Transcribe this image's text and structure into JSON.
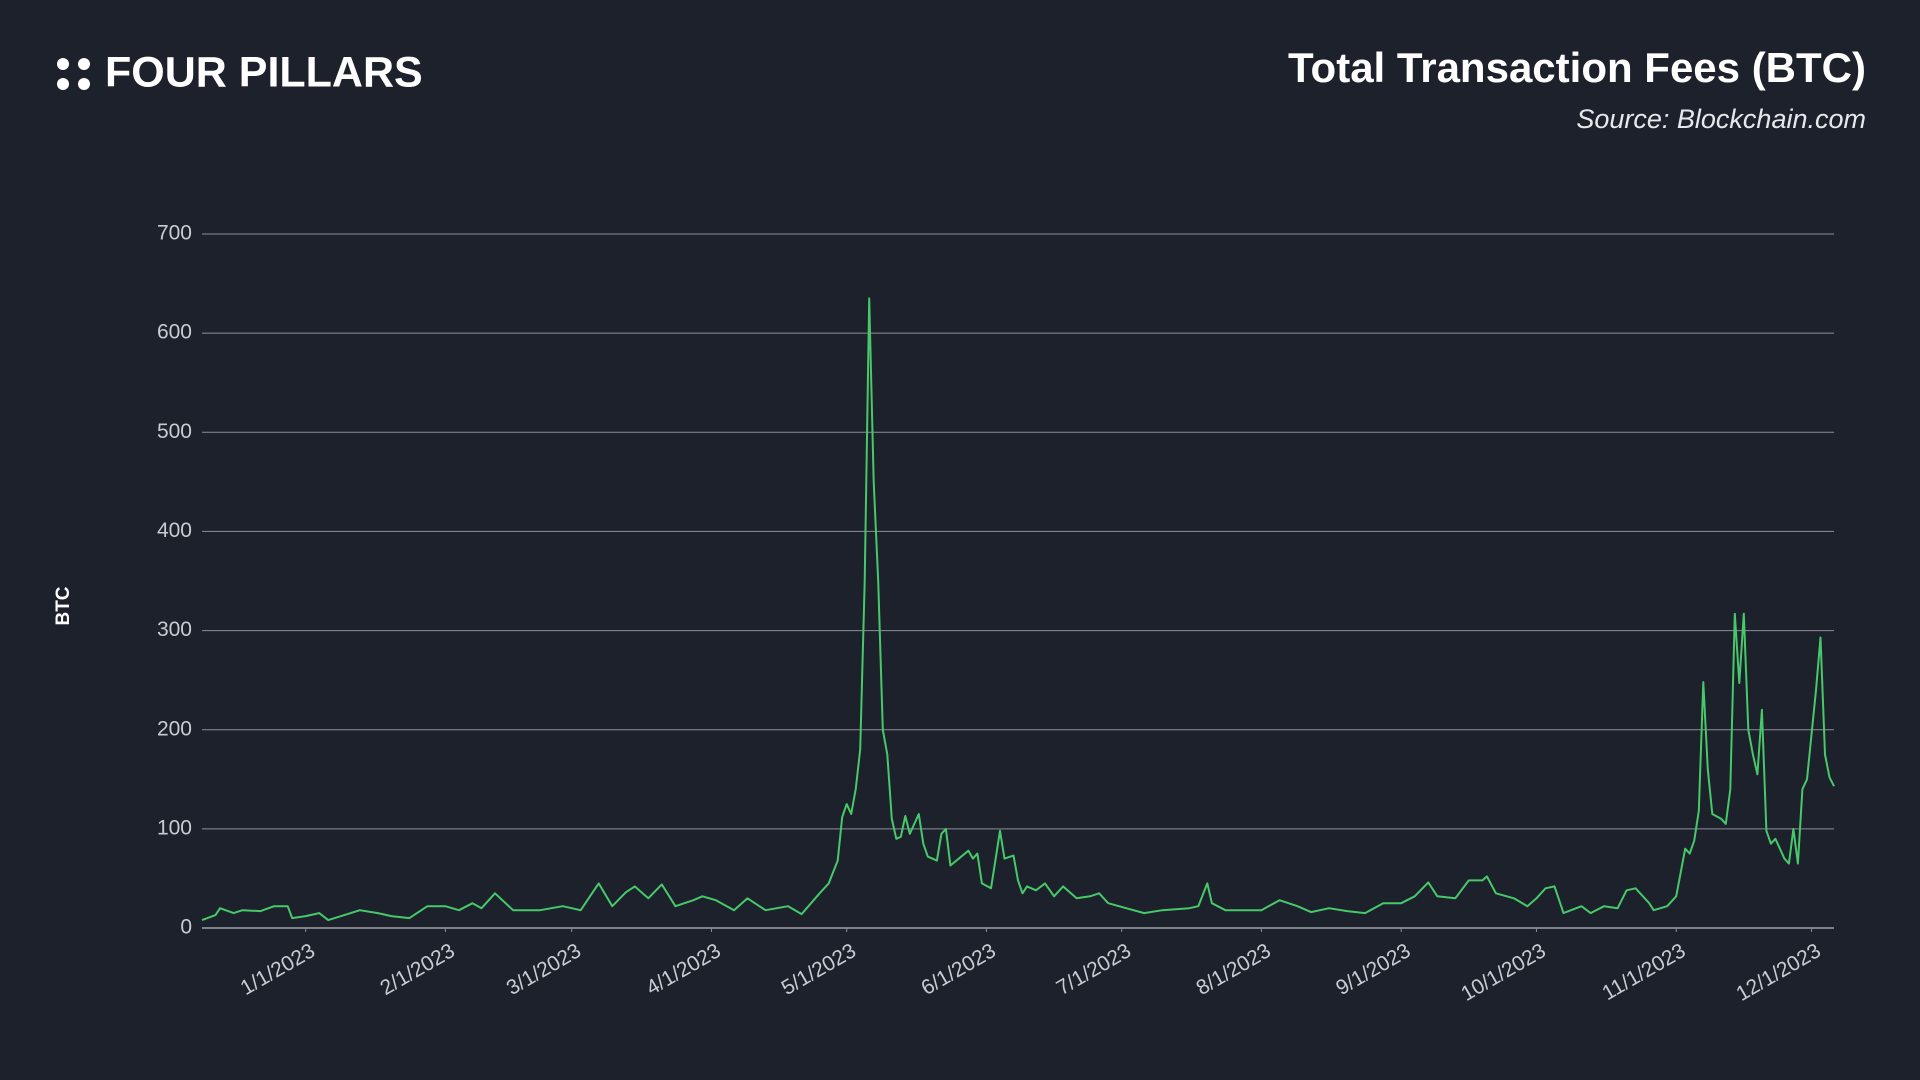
{
  "brand": "FOUR PILLARS",
  "chart_data": {
    "type": "line",
    "title": "Total Transaction Fees (BTC)",
    "subtitle": "Source: Blockchain.com",
    "ylabel": "BTC",
    "color": "#47c96a",
    "xlim": [
      "12/9/2022",
      "12/6/2023"
    ],
    "xticks": [
      "1/1/2023",
      "2/1/2023",
      "3/1/2023",
      "4/1/2023",
      "5/1/2023",
      "6/1/2023",
      "7/1/2023",
      "8/1/2023",
      "9/1/2023",
      "10/1/2023",
      "11/1/2023",
      "12/1/2023"
    ],
    "ylim": [
      0,
      700
    ],
    "yticks": [
      0,
      100,
      200,
      300,
      400,
      500,
      600,
      700
    ],
    "grid": true,
    "x": [
      "12/9/2022",
      "12/12/2022",
      "12/13/2022",
      "12/16/2022",
      "12/18/2022",
      "12/22/2022",
      "12/25/2022",
      "12/28/2022",
      "12/29/2022",
      "1/1/2023",
      "1/4/2023",
      "1/6/2023",
      "1/11/2023",
      "1/13/2023",
      "1/17/2023",
      "1/20/2023",
      "1/24/2023",
      "1/28/2023",
      "2/1/2023",
      "2/4/2023",
      "2/7/2023",
      "2/9/2023",
      "2/12/2023",
      "2/16/2023",
      "2/22/2023",
      "2/27/2023",
      "3/3/2023",
      "3/7/2023",
      "3/10/2023",
      "3/13/2023",
      "3/15/2023",
      "3/18/2023",
      "3/21/2023",
      "3/24/2023",
      "3/28/2023",
      "3/30/2023",
      "4/2/2023",
      "4/6/2023",
      "4/9/2023",
      "4/13/2023",
      "4/18/2023",
      "4/21/2023",
      "4/25/2023",
      "4/27/2023",
      "4/29/2023",
      "4/30/2023",
      "5/1/2023",
      "5/2/2023",
      "5/3/2023",
      "5/4/2023",
      "5/5/2023",
      "5/6/2023",
      "5/7/2023",
      "5/8/2023",
      "5/9/2023",
      "5/10/2023",
      "5/11/2023",
      "5/12/2023",
      "5/13/2023",
      "5/14/2023",
      "5/15/2023",
      "5/17/2023",
      "5/18/2023",
      "5/19/2023",
      "5/21/2023",
      "5/22/2023",
      "5/23/2023",
      "5/24/2023",
      "5/28/2023",
      "5/29/2023",
      "5/30/2023",
      "5/31/2023",
      "6/2/2023",
      "6/4/2023",
      "6/5/2023",
      "6/7/2023",
      "6/8/2023",
      "6/9/2023",
      "6/10/2023",
      "6/12/2023",
      "6/14/2023",
      "6/16/2023",
      "6/18/2023",
      "6/21/2023",
      "6/24/2023",
      "6/26/2023",
      "6/28/2023",
      "7/2/2023",
      "7/6/2023",
      "7/10/2023",
      "7/16/2023",
      "7/18/2023",
      "7/20/2023",
      "7/21/2023",
      "7/24/2023",
      "7/28/2023",
      "8/1/2023",
      "8/5/2023",
      "8/9/2023",
      "8/12/2023",
      "8/16/2023",
      "8/20/2023",
      "8/24/2023",
      "8/28/2023",
      "9/1/2023",
      "9/4/2023",
      "9/7/2023",
      "9/9/2023",
      "9/13/2023",
      "9/16/2023",
      "9/19/2023",
      "9/20/2023",
      "9/22/2023",
      "9/26/2023",
      "9/29/2023",
      "10/1/2023",
      "10/3/2023",
      "10/5/2023",
      "10/7/2023",
      "10/11/2023",
      "10/13/2023",
      "10/16/2023",
      "10/19/2023",
      "10/21/2023",
      "10/23/2023",
      "10/26/2023",
      "10/27/2023",
      "10/30/2023",
      "11/1/2023",
      "11/3/2023",
      "11/4/2023",
      "11/5/2023",
      "11/6/2023",
      "11/7/2023",
      "11/8/2023",
      "11/9/2023",
      "11/11/2023",
      "11/12/2023",
      "11/13/2023",
      "11/14/2023",
      "11/15/2023",
      "11/16/2023",
      "11/17/2023",
      "11/18/2023",
      "11/19/2023",
      "11/20/2023",
      "11/21/2023",
      "11/22/2023",
      "11/23/2023",
      "11/25/2023",
      "11/26/2023",
      "11/27/2023",
      "11/28/2023",
      "11/29/2023",
      "11/30/2023",
      "12/2/2023",
      "12/3/2023",
      "12/4/2023",
      "12/5/2023",
      "12/6/2023"
    ],
    "values": [
      8,
      13,
      20,
      15,
      18,
      17,
      22,
      22,
      10,
      12,
      15,
      8,
      15,
      18,
      15,
      12,
      10,
      22,
      22,
      18,
      25,
      20,
      35,
      18,
      18,
      22,
      18,
      45,
      22,
      36,
      42,
      30,
      44,
      22,
      28,
      32,
      28,
      18,
      30,
      18,
      22,
      14,
      35,
      45,
      68,
      112,
      125,
      115,
      140,
      180,
      350,
      635,
      450,
      350,
      200,
      175,
      110,
      90,
      92,
      113,
      95,
      115,
      85,
      72,
      68,
      95,
      100,
      63,
      78,
      70,
      75,
      45,
      40,
      98,
      70,
      73,
      48,
      35,
      42,
      38,
      45,
      32,
      42,
      30,
      32,
      35,
      25,
      20,
      15,
      18,
      20,
      22,
      45,
      25,
      18,
      18,
      18,
      28,
      22,
      16,
      20,
      17,
      15,
      25,
      25,
      32,
      46,
      32,
      30,
      48,
      48,
      52,
      35,
      30,
      22,
      30,
      40,
      42,
      15,
      22,
      15,
      22,
      20,
      38,
      40,
      25,
      18,
      22,
      32,
      80,
      75,
      88,
      118,
      248,
      160,
      115,
      110,
      105,
      140,
      317,
      247,
      317,
      200,
      175,
      155,
      220,
      98,
      85,
      90,
      70,
      65,
      100,
      65,
      140,
      150,
      240,
      293,
      175,
      152,
      143
    ]
  }
}
